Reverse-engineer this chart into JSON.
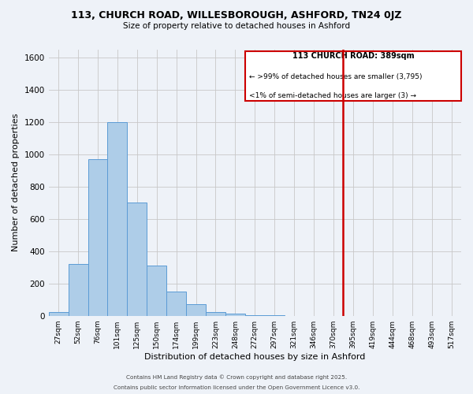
{
  "title": "113, CHURCH ROAD, WILLESBOROUGH, ASHFORD, TN24 0JZ",
  "subtitle": "Size of property relative to detached houses in Ashford",
  "xlabel": "Distribution of detached houses by size in Ashford",
  "ylabel": "Number of detached properties",
  "bar_color": "#aecde8",
  "bar_edge_color": "#5b9bd5",
  "background_color": "#eef2f8",
  "grid_color": "#c8c8c8",
  "categories": [
    "27sqm",
    "52sqm",
    "76sqm",
    "101sqm",
    "125sqm",
    "150sqm",
    "174sqm",
    "199sqm",
    "223sqm",
    "248sqm",
    "272sqm",
    "297sqm",
    "321sqm",
    "346sqm",
    "370sqm",
    "395sqm",
    "419sqm",
    "444sqm",
    "468sqm",
    "493sqm",
    "517sqm"
  ],
  "values": [
    25,
    320,
    970,
    1200,
    700,
    310,
    150,
    70,
    25,
    15,
    5,
    2,
    1,
    1,
    0,
    0,
    0,
    0,
    0,
    0,
    0
  ],
  "ylim": [
    0,
    1650
  ],
  "yticks": [
    0,
    200,
    400,
    600,
    800,
    1000,
    1200,
    1400,
    1600
  ],
  "vline_idx": 15,
  "vline_color": "#cc0000",
  "legend_title": "113 CHURCH ROAD: 389sqm",
  "legend_line1": "← >99% of detached houses are smaller (3,795)",
  "legend_line2": "<1% of semi-detached houses are larger (3) →",
  "footer1": "Contains HM Land Registry data © Crown copyright and database right 2025.",
  "footer2": "Contains public sector information licensed under the Open Government Licence v3.0."
}
